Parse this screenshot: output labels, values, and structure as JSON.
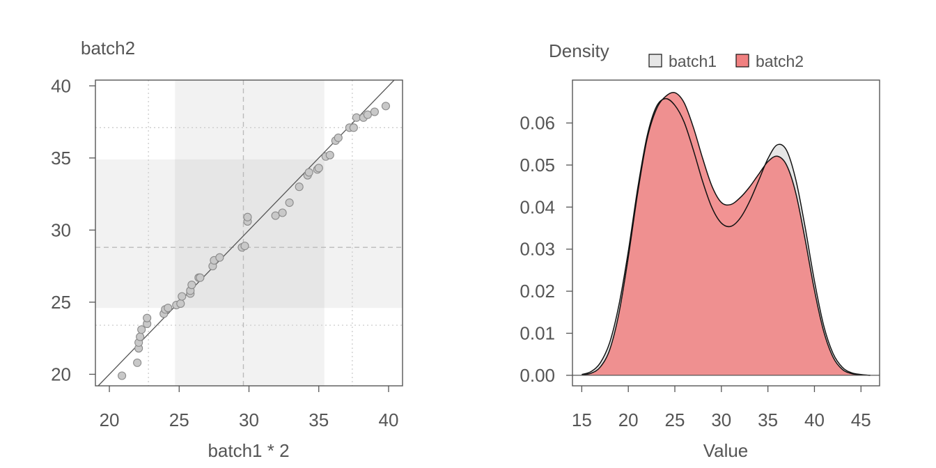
{
  "chart_data": [
    {
      "type": "scatter",
      "ylabel": "batch2",
      "xlabel": "batch1 * 2",
      "xlim": [
        19,
        41
      ],
      "ylim": [
        19.2,
        40.4
      ],
      "xticks": [
        "20",
        "25",
        "30",
        "35",
        "40"
      ],
      "yticks": [
        "20",
        "25",
        "30",
        "35",
        "40"
      ],
      "reference_line": "y = x",
      "x_median": 29.6,
      "y_median": 28.8,
      "x_quartiles": [
        24.7,
        35.4
      ],
      "y_quartiles": [
        24.6,
        34.9
      ],
      "x_whisker_lines": [
        22.8,
        37.4
      ],
      "y_whisker_lines": [
        23.4,
        37.1
      ],
      "x": [
        20.9,
        22.0,
        22.1,
        22.1,
        22.2,
        22.3,
        22.7,
        22.7,
        23.9,
        24.0,
        24.2,
        24.8,
        25.1,
        25.2,
        25.8,
        25.8,
        25.9,
        26.4,
        26.5,
        27.4,
        27.5,
        27.9,
        29.5,
        29.7,
        29.9,
        29.9,
        31.9,
        32.4,
        32.9,
        33.6,
        34.2,
        34.3,
        34.9,
        35.0,
        35.5,
        35.8,
        36.2,
        36.4,
        37.2,
        37.5,
        37.7,
        38.2,
        38.5,
        39.0,
        39.8
      ],
      "y": [
        19.9,
        20.8,
        21.8,
        22.2,
        22.6,
        23.1,
        23.5,
        23.9,
        24.2,
        24.5,
        24.6,
        24.8,
        24.9,
        25.4,
        25.6,
        25.8,
        26.2,
        26.7,
        26.7,
        27.5,
        27.9,
        28.1,
        28.8,
        28.9,
        30.6,
        30.9,
        31.0,
        31.2,
        31.9,
        33.0,
        33.8,
        34.0,
        34.2,
        34.3,
        35.1,
        35.2,
        36.2,
        36.4,
        37.1,
        37.1,
        37.8,
        37.8,
        38.0,
        38.2,
        38.6
      ]
    },
    {
      "type": "area",
      "ylabel": "Density",
      "xlabel": "Value",
      "xlim": [
        14,
        47
      ],
      "ylim": [
        -0.0025,
        0.0702
      ],
      "xticks": [
        "15",
        "20",
        "25",
        "30",
        "35",
        "40",
        "45"
      ],
      "yticks": [
        "0.00",
        "0.01",
        "0.02",
        "0.03",
        "0.04",
        "0.05",
        "0.06"
      ],
      "legend": "top",
      "x": [
        15,
        16,
        17,
        18,
        19,
        20,
        21,
        22,
        23,
        24,
        25,
        26,
        27,
        28,
        29,
        30,
        31,
        32,
        33,
        34,
        35,
        36,
        37,
        38,
        39,
        40,
        41,
        42,
        43,
        44,
        45,
        46
      ],
      "series": [
        {
          "name": "batch1",
          "color": "#e6e6e6",
          "values": [
            0.0002,
            0.0009,
            0.003,
            0.0078,
            0.0168,
            0.0295,
            0.0443,
            0.0567,
            0.0638,
            0.0658,
            0.0642,
            0.0602,
            0.0535,
            0.046,
            0.0398,
            0.0362,
            0.0354,
            0.0373,
            0.0412,
            0.0463,
            0.0515,
            0.0548,
            0.0535,
            0.0465,
            0.0352,
            0.0224,
            0.0118,
            0.0052,
            0.0019,
            0.0006,
            0.0002,
            0.0
          ]
        },
        {
          "name": "batch2",
          "color": "#f08080",
          "values": [
            0.0001,
            0.0005,
            0.002,
            0.0061,
            0.0148,
            0.0281,
            0.0432,
            0.056,
            0.0632,
            0.0663,
            0.0672,
            0.0648,
            0.0589,
            0.0515,
            0.0449,
            0.0411,
            0.0406,
            0.0422,
            0.0447,
            0.0478,
            0.0508,
            0.0521,
            0.05,
            0.0433,
            0.0323,
            0.0202,
            0.0104,
            0.0043,
            0.0014,
            0.0004,
            0.0001,
            0.0
          ]
        }
      ]
    }
  ]
}
